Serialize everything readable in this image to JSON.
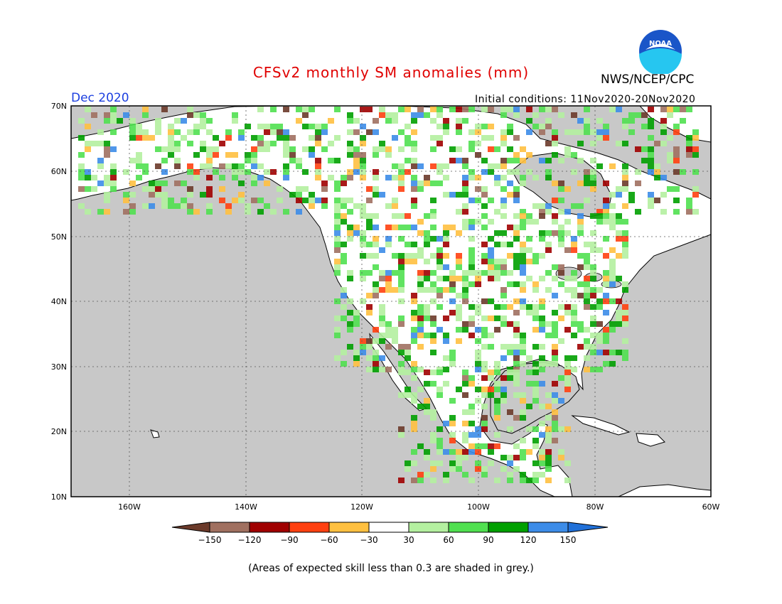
{
  "header": {
    "title": "CFSv2 monthly SM anomalies (mm)",
    "agency": "NWS/NCEP/CPC",
    "month": "Dec 2020",
    "initial_conditions": "Initial conditions: 11Nov2020-20Nov2020",
    "logo_text": "NOAA"
  },
  "map": {
    "lat_labels": [
      "70N",
      "60N",
      "50N",
      "40N",
      "30N",
      "20N",
      "10N"
    ],
    "lon_labels": [
      "160W",
      "140W",
      "120W",
      "100W",
      "80W",
      "60W"
    ],
    "colors": {
      "ocean_skill_grey": "#c8c8c8",
      "land": "#ffffff"
    }
  },
  "legend": {
    "tick_labels": [
      "-150",
      "-120",
      "-90",
      "-60",
      "-30",
      "30",
      "60",
      "90",
      "120",
      "150"
    ],
    "colors": [
      "#6b3a2a",
      "#a07060",
      "#a00000",
      "#ff4010",
      "#ffc040",
      "#ffffff",
      "#b4f0a0",
      "#50e050",
      "#00a000",
      "#3c8ce8",
      "#2070d8"
    ]
  },
  "footnote": "(Areas of expected skill less than 0.3 are shaded in grey.)"
}
